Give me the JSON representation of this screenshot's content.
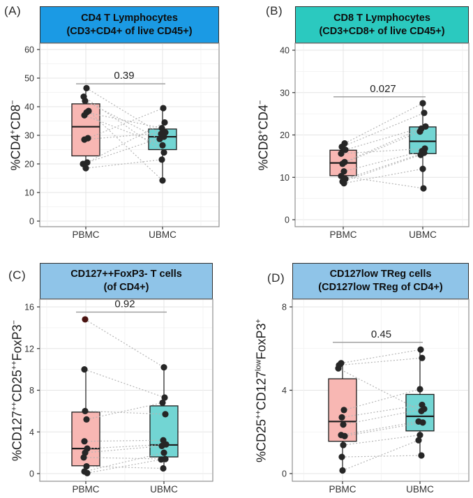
{
  "figure": {
    "categories": [
      "PBMC",
      "UBMC"
    ],
    "point_color": "#262626",
    "pair_line_color": "#b5b5b5",
    "p_line_color": "#9a9a9a",
    "grid_major_color": "#e4e4e4",
    "grid_minor_color": "#f1f1f1",
    "panel_border_color": "#8f8f8f",
    "box_fill_pbmc": "#F8B7B3",
    "box_fill_ubmc": "#72D5D3"
  },
  "chart_data": [
    {
      "type": "boxplot-paired",
      "panel_label": "(A)",
      "title_line1": "CD4 T Lymphocytes",
      "title_line2": "(CD3+CD4+ of live CD45+)",
      "header_color": "#1B9AE4",
      "ylabel_segments": [
        {
          "t": "%CD4"
        },
        {
          "t": "+",
          "sup": true
        },
        {
          "t": "CD8"
        },
        {
          "t": "−",
          "sup": true
        }
      ],
      "categories": [
        "PBMC",
        "UBMC"
      ],
      "yticks": [
        0,
        10,
        20,
        30,
        40,
        50,
        60
      ],
      "ylim": [
        0,
        60
      ],
      "p_value": "0.39",
      "p_line_y": 48,
      "boxes": [
        {
          "lo": 18.5,
          "q1": 22.8,
          "med": 33.0,
          "q3": 41.0,
          "hi": 46.5
        },
        {
          "lo": 14.2,
          "q1": 25.0,
          "med": 29.5,
          "q3": 32.2,
          "hi": 39.5
        }
      ],
      "pairs": [
        {
          "p": 46.5,
          "u": 30.5,
          "pj": 1,
          "uj": -2
        },
        {
          "p": 43.5,
          "u": 24.0,
          "pj": -3,
          "uj": 2
        },
        {
          "p": 42.0,
          "u": 28.7,
          "pj": -1,
          "uj": -4
        },
        {
          "p": 38.5,
          "u": 14.2,
          "pj": 4,
          "uj": 0
        },
        {
          "p": 38.0,
          "u": 32.5,
          "pj": 1,
          "uj": -1
        },
        {
          "p": 37.0,
          "u": 26.5,
          "pj": -2,
          "uj": 0
        },
        {
          "p": 29.0,
          "u": 39.5,
          "pj": 3,
          "uj": 1
        },
        {
          "p": 28.5,
          "u": 31.0,
          "pj": -2,
          "uj": 4
        },
        {
          "p": 20.5,
          "u": 34.5,
          "pj": 2,
          "uj": 3
        },
        {
          "p": 20.0,
          "u": 29.5,
          "pj": -4,
          "uj": 2
        },
        {
          "p": 18.5,
          "u": 21.5,
          "pj": 0,
          "uj": -1
        }
      ]
    },
    {
      "type": "boxplot-paired",
      "panel_label": "(B)",
      "title_line1": "CD8 T Lymphocytes",
      "title_line2": "(CD3+CD8+ of live CD45+)",
      "header_color": "#2BC9BF",
      "ylabel_segments": [
        {
          "t": "%CD8"
        },
        {
          "t": "+",
          "sup": true
        },
        {
          "t": "CD4"
        },
        {
          "t": "−",
          "sup": true
        }
      ],
      "categories": [
        "PBMC",
        "UBMC"
      ],
      "yticks": [
        0,
        10,
        20,
        30,
        40
      ],
      "ylim": [
        0,
        40
      ],
      "p_value": "0.027",
      "p_line_y": 29,
      "boxes": [
        {
          "lo": 8.6,
          "q1": 10.4,
          "med": 13.4,
          "q3": 16.4,
          "hi": 18.0
        },
        {
          "lo": 7.4,
          "q1": 15.6,
          "med": 18.5,
          "q3": 21.9,
          "hi": 27.5
        }
      ],
      "pairs": [
        {
          "p": 18.0,
          "u": 27.5,
          "pj": 2,
          "uj": 0
        },
        {
          "p": 17.2,
          "u": 25.2,
          "pj": -2,
          "uj": 2
        },
        {
          "p": 16.5,
          "u": 22.0,
          "pj": 3,
          "uj": 4
        },
        {
          "p": 15.6,
          "u": 16.8,
          "pj": -3,
          "uj": 3
        },
        {
          "p": 13.6,
          "u": 21.5,
          "pj": 2,
          "uj": -2
        },
        {
          "p": 13.2,
          "u": 20.8,
          "pj": -1,
          "uj": -4
        },
        {
          "p": 11.4,
          "u": 16.2,
          "pj": 1,
          "uj": -1
        },
        {
          "p": 10.3,
          "u": 7.4,
          "pj": -3,
          "uj": 1
        },
        {
          "p": 9.6,
          "u": 15.8,
          "pj": 3,
          "uj": 2
        },
        {
          "p": 9.0,
          "u": 15.3,
          "pj": -1,
          "uj": -3
        },
        {
          "p": 8.6,
          "u": 12.0,
          "pj": 1,
          "uj": 0
        }
      ]
    },
    {
      "type": "boxplot-paired",
      "panel_label": "(C)",
      "title_line1": "CD127++FoxP3- T cells",
      "title_line2": "(of CD4+)",
      "header_color": "#8FC4E8",
      "ylabel_segments": [
        {
          "t": "%CD127"
        },
        {
          "t": "++",
          "sup": true
        },
        {
          "t": "CD25"
        },
        {
          "t": "++",
          "sup": true
        },
        {
          "t": "FoxP3"
        },
        {
          "t": "−",
          "sup": true
        }
      ],
      "categories": [
        "PBMC",
        "UBMC"
      ],
      "yticks": [
        0,
        4,
        8,
        12,
        16
      ],
      "ylim": [
        0,
        16
      ],
      "p_value": "0.92",
      "p_line_y": 15.5,
      "boxes": [
        {
          "lo": 0.05,
          "q1": 0.75,
          "med": 2.4,
          "q3": 5.9,
          "hi": 10.0
        },
        {
          "lo": 0.3,
          "q1": 1.6,
          "med": 2.75,
          "q3": 6.5,
          "hi": 10.2
        }
      ],
      "pairs": [
        {
          "p": 14.8,
          "u": 10.2,
          "pj": -1,
          "uj": 0,
          "pc": "#4A1310"
        },
        {
          "p": 10.0,
          "u": 7.3,
          "pj": -2,
          "uj": 1
        },
        {
          "p": 6.0,
          "u": 5.7,
          "pj": -1,
          "uj": 2
        },
        {
          "p": 5.2,
          "u": 6.8,
          "pj": 1,
          "uj": -2
        },
        {
          "p": 3.1,
          "u": 3.2,
          "pj": -2,
          "uj": -1
        },
        {
          "p": 2.4,
          "u": 2.8,
          "pj": 2,
          "uj": 3
        },
        {
          "p": 2.0,
          "u": 2.65,
          "pj": -1,
          "uj": -3
        },
        {
          "p": 1.55,
          "u": 1.4,
          "pj": -3,
          "uj": 2
        },
        {
          "p": 0.7,
          "u": 0.5,
          "pj": 1,
          "uj": -1
        },
        {
          "p": 0.2,
          "u": 2.0,
          "pj": -2,
          "uj": 0
        },
        {
          "p": 0.05,
          "u": 1.35,
          "pj": 2,
          "uj": -4
        }
      ]
    },
    {
      "type": "boxplot-paired",
      "panel_label": "(D)",
      "title_line1": "CD127low TReg cells",
      "title_line2": "(CD127low TReg of CD4+)",
      "header_color": "#8FC4E8",
      "ylabel_segments": [
        {
          "t": "%CD25"
        },
        {
          "t": "++",
          "sup": true
        },
        {
          "t": "CD127"
        },
        {
          "t": "low",
          "sup": true
        },
        {
          "t": "FoxP3"
        },
        {
          "t": "+",
          "sup": true
        }
      ],
      "categories": [
        "PBMC",
        "UBMC"
      ],
      "yticks": [
        0,
        4,
        8
      ],
      "ylim": [
        0,
        8
      ],
      "p_value": "0.45",
      "p_line_y": 6.3,
      "boxes": [
        {
          "lo": 0.15,
          "q1": 1.55,
          "med": 2.5,
          "q3": 4.55,
          "hi": 5.3
        },
        {
          "lo": 0.87,
          "q1": 2.05,
          "med": 2.75,
          "q3": 3.8,
          "hi": 5.95
        }
      ],
      "pairs": [
        {
          "p": 5.3,
          "u": 5.95,
          "pj": -2,
          "uj": 1
        },
        {
          "p": 5.2,
          "u": 5.55,
          "pj": -5,
          "uj": 3
        },
        {
          "p": 5.05,
          "u": 3.0,
          "pj": -6,
          "uj": 2
        },
        {
          "p": 3.05,
          "u": 4.05,
          "pj": 2,
          "uj": 0
        },
        {
          "p": 2.7,
          "u": 3.3,
          "pj": -1,
          "uj": 3
        },
        {
          "p": 2.35,
          "u": 3.1,
          "pj": 1,
          "uj": 6
        },
        {
          "p": 1.85,
          "u": 2.5,
          "pj": -2,
          "uj": -2
        },
        {
          "p": 1.8,
          "u": 2.45,
          "pj": 3,
          "uj": 4
        },
        {
          "p": 1.37,
          "u": 1.85,
          "pj": 1,
          "uj": 0
        },
        {
          "p": 0.8,
          "u": 0.87,
          "pj": -1,
          "uj": 2
        },
        {
          "p": 0.15,
          "u": 1.6,
          "pj": 0,
          "uj": -2
        }
      ]
    }
  ]
}
